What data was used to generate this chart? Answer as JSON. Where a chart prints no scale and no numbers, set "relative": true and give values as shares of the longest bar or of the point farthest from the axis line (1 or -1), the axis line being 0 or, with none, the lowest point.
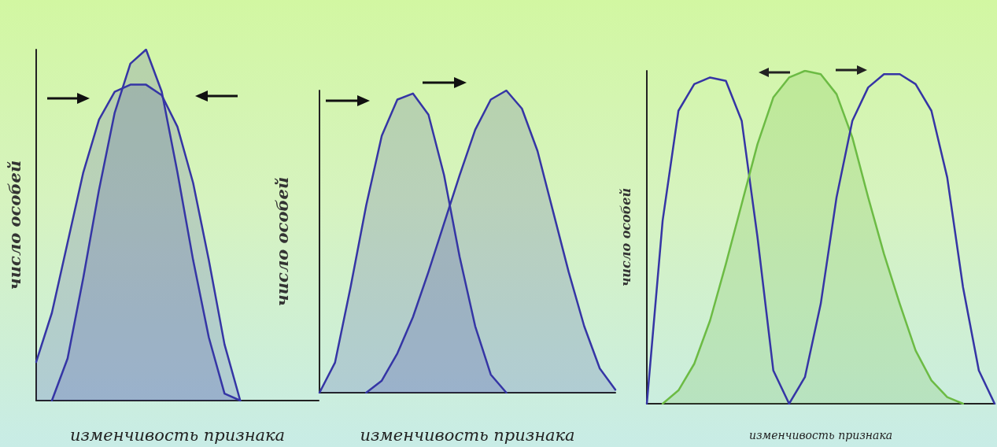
{
  "chart_data": [
    {
      "type": "area",
      "relative": true,
      "xlabel": "изменчивость признака",
      "ylabel": "число особей",
      "grid": false,
      "marker": "none",
      "categories": [
        null,
        null,
        null,
        null,
        null,
        null,
        null,
        null,
        null,
        null,
        null,
        null,
        null,
        null,
        null,
        null,
        null,
        null,
        null
      ],
      "series": [
        {
          "color": "#3535a5",
          "values": [
            null,
            0,
            0.12,
            0.35,
            0.6,
            0.82,
            0.96,
            1,
            0.88,
            0.65,
            0.4,
            0.18,
            0.02,
            0,
            null,
            null,
            null,
            null,
            null
          ]
        },
        {
          "color": "#3535a5",
          "values": [
            0.11,
            0.25,
            0.45,
            0.65,
            0.8,
            0.88,
            0.9,
            0.9,
            0.87,
            0.78,
            0.62,
            0.4,
            0.16,
            0,
            null,
            null,
            null,
            null,
            null
          ]
        }
      ]
    },
    {
      "type": "area",
      "relative": true,
      "xlabel": "изменчивость признака",
      "ylabel": "число особей",
      "grid": false,
      "marker": "none",
      "categories": [
        null,
        null,
        null,
        null,
        null,
        null,
        null,
        null,
        null,
        null,
        null,
        null,
        null,
        null,
        null,
        null,
        null,
        null,
        null,
        null
      ],
      "series": [
        {
          "color": "#3535a5",
          "values": [
            0,
            0.1,
            0.35,
            0.62,
            0.85,
            0.97,
            0.99,
            0.92,
            0.72,
            0.45,
            0.22,
            0.06,
            0,
            null,
            null,
            null,
            null,
            null,
            null,
            null
          ]
        },
        {
          "color": "#3535a5",
          "values": [
            null,
            null,
            null,
            0,
            0.04,
            0.13,
            0.25,
            0.4,
            0.56,
            0.72,
            0.87,
            0.97,
            1,
            0.94,
            0.8,
            0.6,
            0.4,
            0.22,
            0.08,
            0.01
          ]
        }
      ]
    },
    {
      "type": "line",
      "relative": true,
      "xlabel": "изменчивость признака",
      "ylabel": "число особей",
      "grid": false,
      "marker": "none",
      "categories": [
        null,
        null,
        null,
        null,
        null,
        null,
        null,
        null,
        null,
        null,
        null,
        null,
        null,
        null,
        null,
        null,
        null,
        null,
        null,
        null,
        null,
        null,
        null
      ],
      "series": [
        {
          "color": "#3535a5",
          "values": [
            0,
            0.55,
            0.88,
            0.96,
            0.98,
            0.97,
            0.85,
            0.5,
            0.1,
            0,
            null,
            null,
            null,
            null,
            null,
            null,
            null,
            null,
            null,
            null,
            null,
            null,
            null
          ]
        },
        {
          "type": "area",
          "color": "#6cbb44",
          "values": [
            null,
            0,
            0.04,
            0.12,
            0.25,
            0.42,
            0.6,
            0.78,
            0.92,
            0.98,
            1,
            0.99,
            0.93,
            0.8,
            0.62,
            0.45,
            0.3,
            0.16,
            0.07,
            0.02,
            0,
            null,
            null
          ]
        },
        {
          "color": "#3535a5",
          "values": [
            null,
            null,
            null,
            null,
            null,
            null,
            null,
            null,
            null,
            0,
            0.08,
            0.3,
            0.62,
            0.85,
            0.95,
            0.99,
            0.99,
            0.96,
            0.88,
            0.68,
            0.35,
            0.1,
            0
          ]
        }
      ]
    }
  ]
}
